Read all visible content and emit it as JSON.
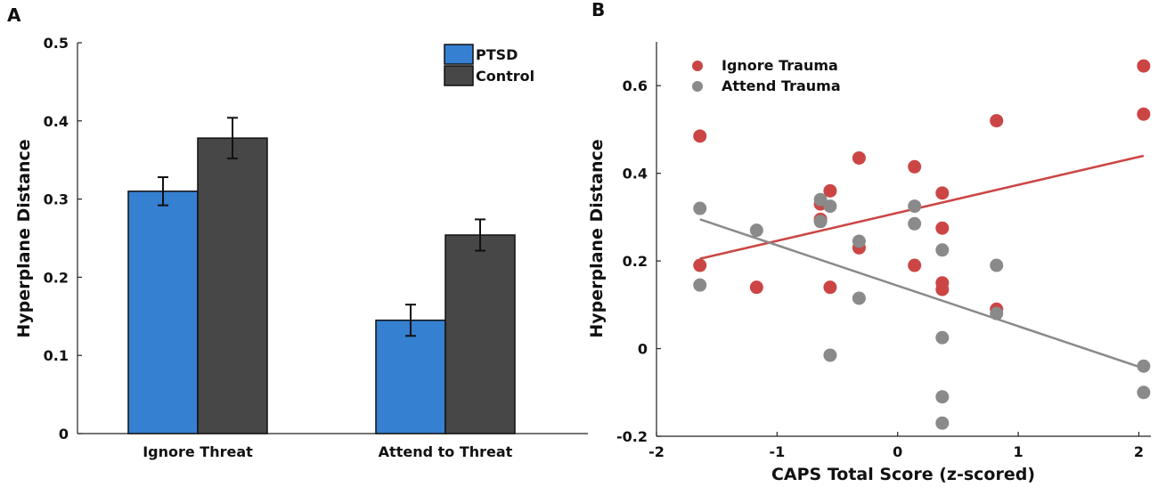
{
  "chart_data": [
    {
      "panel_label": "A",
      "type": "bar",
      "title": "",
      "xlabel": "",
      "ylabel": "Hyperplane Distance",
      "ylim": [
        0,
        0.5
      ],
      "yticks": [
        0,
        0.1,
        0.2,
        0.3,
        0.4,
        0.5
      ],
      "ytick_labels": [
        "0",
        "0.1",
        "0.2",
        "0.3",
        "0.4",
        "0.5"
      ],
      "categories": [
        "Ignore Threat",
        "Attend to Threat"
      ],
      "legend_position": "top-right",
      "series": [
        {
          "name": "PTSD",
          "color": "#3580d1",
          "values": [
            0.31,
            0.145
          ],
          "errors": [
            0.018,
            0.02
          ]
        },
        {
          "name": "Control",
          "color": "#474747",
          "values": [
            0.378,
            0.254
          ],
          "errors": [
            0.026,
            0.02
          ]
        }
      ]
    },
    {
      "panel_label": "B",
      "type": "scatter",
      "title": "",
      "xlabel": "CAPS Total Score (z-scored)",
      "ylabel": "Hyperplane Distance",
      "xlim": [
        -2,
        2.1
      ],
      "ylim": [
        -0.2,
        0.7
      ],
      "xticks": [
        -2,
        -1,
        0,
        1,
        2
      ],
      "xtick_labels": [
        "-2",
        "-1",
        "0",
        "1",
        "2"
      ],
      "yticks": [
        -0.2,
        0,
        0.2,
        0.4,
        0.6
      ],
      "ytick_labels": [
        "-0.2",
        "0",
        "0.2",
        "0.4",
        "0.6"
      ],
      "legend_position": "top-left",
      "series": [
        {
          "name": "Ignore Trauma",
          "color": "#cc4545",
          "points": [
            [
              -1.64,
              0.485
            ],
            [
              -1.64,
              0.19
            ],
            [
              -1.17,
              0.14
            ],
            [
              -0.64,
              0.33
            ],
            [
              -0.64,
              0.295
            ],
            [
              -0.56,
              0.36
            ],
            [
              -0.56,
              0.14
            ],
            [
              -0.32,
              0.435
            ],
            [
              -0.32,
              0.23
            ],
            [
              0.14,
              0.415
            ],
            [
              0.14,
              0.19
            ],
            [
              0.37,
              0.355
            ],
            [
              0.37,
              0.275
            ],
            [
              0.37,
              0.15
            ],
            [
              0.37,
              0.135
            ],
            [
              0.82,
              0.52
            ],
            [
              0.82,
              0.09
            ],
            [
              2.04,
              0.645
            ],
            [
              2.04,
              0.535
            ]
          ],
          "trend": [
            [
              -1.64,
              0.205
            ],
            [
              2.04,
              0.44
            ]
          ]
        },
        {
          "name": "Attend Trauma",
          "color": "#8a8a8a",
          "points": [
            [
              -1.64,
              0.32
            ],
            [
              -1.64,
              0.145
            ],
            [
              -1.17,
              0.27
            ],
            [
              -0.64,
              0.34
            ],
            [
              -0.64,
              0.29
            ],
            [
              -0.56,
              0.325
            ],
            [
              -0.56,
              -0.015
            ],
            [
              -0.32,
              0.245
            ],
            [
              -0.32,
              0.115
            ],
            [
              0.14,
              0.325
            ],
            [
              0.14,
              0.285
            ],
            [
              0.37,
              0.225
            ],
            [
              0.37,
              0.025
            ],
            [
              0.37,
              -0.11
            ],
            [
              0.37,
              -0.17
            ],
            [
              0.82,
              0.19
            ],
            [
              0.82,
              0.08
            ],
            [
              2.04,
              -0.04
            ],
            [
              2.04,
              -0.1
            ]
          ],
          "trend": [
            [
              -1.64,
              0.295
            ],
            [
              2.04,
              -0.045
            ]
          ]
        }
      ]
    }
  ]
}
